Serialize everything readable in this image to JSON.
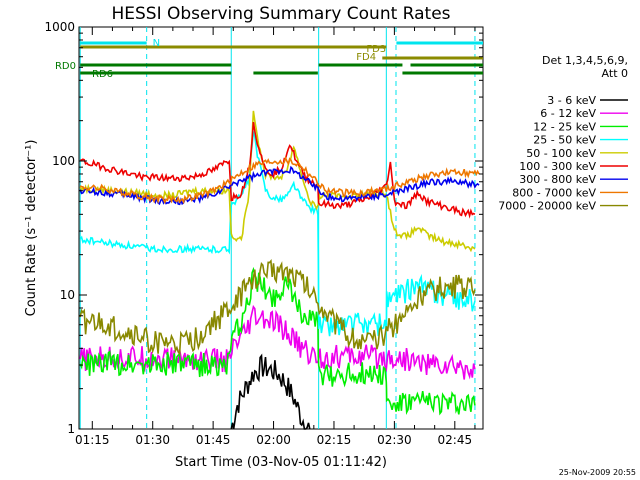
{
  "chart_data": {
    "type": "line",
    "title": "HESSI Observing Summary Count Rates",
    "xlabel": "Start Time (03-Nov-05 01:11:42)",
    "ylabel": "Count Rate (s⁻¹ detector⁻¹)",
    "yscale": "log",
    "ylim": [
      1,
      1000
    ],
    "xlim_minutes": [
      71.7,
      172.0
    ],
    "x_ticks": [
      "01:15",
      "01:30",
      "01:45",
      "02:00",
      "02:15",
      "02:30",
      "02:45"
    ],
    "y_ticks": [
      "1",
      "10",
      "100",
      "1000"
    ],
    "legend_header": [
      "Det 1,3,4,5,6,9,",
      "Att 0"
    ],
    "footer": "25-Nov-2009 20:55",
    "vertical_lines": [
      {
        "t": 72.0,
        "style": "solid"
      },
      {
        "t": 88.5,
        "style": "dashed"
      },
      {
        "t": 109.5,
        "style": "solid"
      },
      {
        "t": 131.2,
        "style": "solid"
      },
      {
        "t": 148.0,
        "style": "solid"
      },
      {
        "t": 150.4,
        "style": "dashed"
      },
      {
        "t": 170.0,
        "style": "dashed"
      }
    ],
    "flags": [
      {
        "label": "N",
        "color": "#00e5ee",
        "segments": [
          [
            72,
            88.5
          ],
          [
            150.5,
            172
          ]
        ]
      },
      {
        "label": "FD3",
        "color": "#8b8b00",
        "segments": [
          [
            72,
            148
          ]
        ]
      },
      {
        "label": "FD4",
        "color": "#8b8b00",
        "segments": [
          [
            147,
            172
          ]
        ]
      },
      {
        "label": "RD0",
        "color": "#007800",
        "segments": [
          [
            72,
            109.5
          ],
          [
            131.2,
            152
          ],
          [
            154,
            172
          ]
        ]
      },
      {
        "label": "RD6",
        "color": "#007800",
        "segments": [
          [
            72,
            109.5
          ],
          [
            115,
            131
          ],
          [
            152,
            172
          ]
        ]
      }
    ],
    "series": [
      {
        "name": "3 - 6 keV",
        "color": "#000000",
        "points": [
          [
            109.5,
            1.0
          ],
          [
            111,
            1.5
          ],
          [
            113,
            2.0
          ],
          [
            115,
            2.6
          ],
          [
            117,
            2.9
          ],
          [
            119,
            2.8
          ],
          [
            121,
            2.6
          ],
          [
            123,
            2.2
          ],
          [
            125,
            1.7
          ],
          [
            127,
            1.2
          ],
          [
            129,
            1.0
          ]
        ]
      },
      {
        "name": "6 - 12 keV",
        "color": "#ee00ee",
        "points": [
          [
            72,
            3.3
          ],
          [
            80,
            3.4
          ],
          [
            90,
            3.4
          ],
          [
            100,
            3.3
          ],
          [
            109,
            3.2
          ],
          [
            110,
            4.0
          ],
          [
            113,
            5.0
          ],
          [
            115,
            6.8
          ],
          [
            118,
            6.4
          ],
          [
            121,
            6.0
          ],
          [
            124,
            5.0
          ],
          [
            127,
            4.0
          ],
          [
            130,
            3.5
          ],
          [
            131.2,
            3.4
          ],
          [
            140,
            3.5
          ],
          [
            150,
            3.4
          ],
          [
            160,
            3.0
          ],
          [
            170,
            2.8
          ]
        ]
      },
      {
        "name": "12 - 25 keV",
        "color": "#00ee00",
        "points": [
          [
            72,
            3.0
          ],
          [
            80,
            3.1
          ],
          [
            90,
            3.1
          ],
          [
            100,
            3.0
          ],
          [
            109,
            3.0
          ],
          [
            110,
            5.0
          ],
          [
            113,
            7.0
          ],
          [
            115,
            14
          ],
          [
            117,
            12
          ],
          [
            119,
            10
          ],
          [
            121,
            10
          ],
          [
            123,
            13
          ],
          [
            125,
            9
          ],
          [
            128,
            7
          ],
          [
            131,
            6
          ],
          [
            131.2,
            2.5
          ],
          [
            140,
            2.6
          ],
          [
            148,
            2.6
          ],
          [
            148.1,
            1.5
          ],
          [
            160,
            1.6
          ],
          [
            170,
            1.5
          ]
        ]
      },
      {
        "name": "25 - 50 keV",
        "color": "#00ffff",
        "points": [
          [
            72,
            26
          ],
          [
            80,
            24
          ],
          [
            90,
            22
          ],
          [
            100,
            22
          ],
          [
            109,
            22
          ],
          [
            109.5,
            48
          ],
          [
            112,
            55
          ],
          [
            114,
            75
          ],
          [
            115,
            170
          ],
          [
            116,
            110
          ],
          [
            118,
            62
          ],
          [
            120,
            52
          ],
          [
            122,
            52
          ],
          [
            124,
            58
          ],
          [
            125,
            68
          ],
          [
            127,
            52
          ],
          [
            129,
            45
          ],
          [
            131,
            42
          ],
          [
            131.2,
            6
          ],
          [
            140,
            6
          ],
          [
            148,
            6
          ],
          [
            148.1,
            9
          ],
          [
            152,
            10
          ],
          [
            155,
            12
          ],
          [
            158,
            11
          ],
          [
            162,
            10
          ],
          [
            166,
            9.5
          ],
          [
            170,
            9
          ]
        ]
      },
      {
        "name": "50 - 100 keV",
        "color": "#cccc00",
        "points": [
          [
            72,
            63
          ],
          [
            80,
            60
          ],
          [
            88,
            57
          ],
          [
            95,
            55
          ],
          [
            100,
            60
          ],
          [
            108,
            60
          ],
          [
            109,
            62
          ],
          [
            109.5,
            28
          ],
          [
            112,
            26
          ],
          [
            114,
            60
          ],
          [
            115,
            250
          ],
          [
            116,
            150
          ],
          [
            118,
            80
          ],
          [
            121,
            75
          ],
          [
            123,
            80
          ],
          [
            125,
            130
          ],
          [
            127,
            78
          ],
          [
            129,
            50
          ],
          [
            131,
            45
          ],
          [
            131.2,
            55
          ],
          [
            140,
            55
          ],
          [
            148,
            58
          ],
          [
            150,
            30
          ],
          [
            153,
            27
          ],
          [
            156,
            32
          ],
          [
            158,
            28
          ],
          [
            162,
            25
          ],
          [
            166,
            24
          ],
          [
            170,
            22
          ]
        ]
      },
      {
        "name": "100 - 300 keV",
        "color": "#ee0000",
        "points": [
          [
            72,
            100
          ],
          [
            76,
            93
          ],
          [
            82,
            83
          ],
          [
            88,
            76
          ],
          [
            95,
            74
          ],
          [
            100,
            76
          ],
          [
            105,
            85
          ],
          [
            109,
            102
          ],
          [
            109.5,
            53
          ],
          [
            112,
            57
          ],
          [
            114,
            90
          ],
          [
            115,
            190
          ],
          [
            116,
            140
          ],
          [
            118,
            85
          ],
          [
            120,
            80
          ],
          [
            122,
            90
          ],
          [
            124,
            135
          ],
          [
            126,
            95
          ],
          [
            128,
            75
          ],
          [
            130,
            68
          ],
          [
            131,
            66
          ],
          [
            131.2,
            48
          ],
          [
            137,
            46
          ],
          [
            143,
            52
          ],
          [
            148,
            65
          ],
          [
            149,
            100
          ],
          [
            150,
            50
          ],
          [
            153,
            46
          ],
          [
            156,
            58
          ],
          [
            158,
            50
          ],
          [
            162,
            46
          ],
          [
            166,
            42
          ],
          [
            170,
            40
          ]
        ]
      },
      {
        "name": "300 - 800 keV",
        "color": "#0000ee",
        "points": [
          [
            72,
            60
          ],
          [
            78,
            58
          ],
          [
            85,
            55
          ],
          [
            92,
            50
          ],
          [
            98,
            50
          ],
          [
            104,
            54
          ],
          [
            109,
            64
          ],
          [
            112,
            72
          ],
          [
            116,
            78
          ],
          [
            120,
            84
          ],
          [
            124,
            86
          ],
          [
            127,
            78
          ],
          [
            130,
            65
          ],
          [
            133,
            55
          ],
          [
            137,
            52
          ],
          [
            142,
            54
          ],
          [
            148,
            56
          ],
          [
            152,
            60
          ],
          [
            156,
            66
          ],
          [
            160,
            70
          ],
          [
            164,
            70
          ],
          [
            168,
            68
          ],
          [
            171,
            66
          ]
        ]
      },
      {
        "name": "800 - 7000 keV",
        "color": "#ee7700",
        "points": [
          [
            72,
            64
          ],
          [
            78,
            62
          ],
          [
            85,
            56
          ],
          [
            92,
            52
          ],
          [
            98,
            52
          ],
          [
            104,
            58
          ],
          [
            109,
            70
          ],
          [
            112,
            82
          ],
          [
            116,
            95
          ],
          [
            120,
            100
          ],
          [
            124,
            100
          ],
          [
            127,
            92
          ],
          [
            130,
            74
          ],
          [
            133,
            60
          ],
          [
            137,
            58
          ],
          [
            142,
            58
          ],
          [
            148,
            62
          ],
          [
            152,
            68
          ],
          [
            156,
            74
          ],
          [
            160,
            80
          ],
          [
            164,
            82
          ],
          [
            168,
            82
          ],
          [
            171,
            80
          ]
        ]
      },
      {
        "name": "7000 - 20000 keV",
        "color": "#888800",
        "points": [
          [
            72,
            6.3
          ],
          [
            78,
            6.0
          ],
          [
            84,
            5.2
          ],
          [
            90,
            4.5
          ],
          [
            96,
            4.2
          ],
          [
            100,
            4.5
          ],
          [
            104,
            5.8
          ],
          [
            109,
            7.8
          ],
          [
            112,
            10
          ],
          [
            115,
            13
          ],
          [
            118,
            15
          ],
          [
            121,
            15.5
          ],
          [
            124,
            15
          ],
          [
            127,
            13
          ],
          [
            130,
            10
          ],
          [
            133,
            7.5
          ],
          [
            137,
            5.4
          ],
          [
            142,
            4.4
          ],
          [
            146,
            4.6
          ],
          [
            150,
            6
          ],
          [
            154,
            8.2
          ],
          [
            158,
            10.5
          ],
          [
            162,
            11.5
          ],
          [
            166,
            11.5
          ],
          [
            170,
            11
          ]
        ]
      }
    ]
  }
}
